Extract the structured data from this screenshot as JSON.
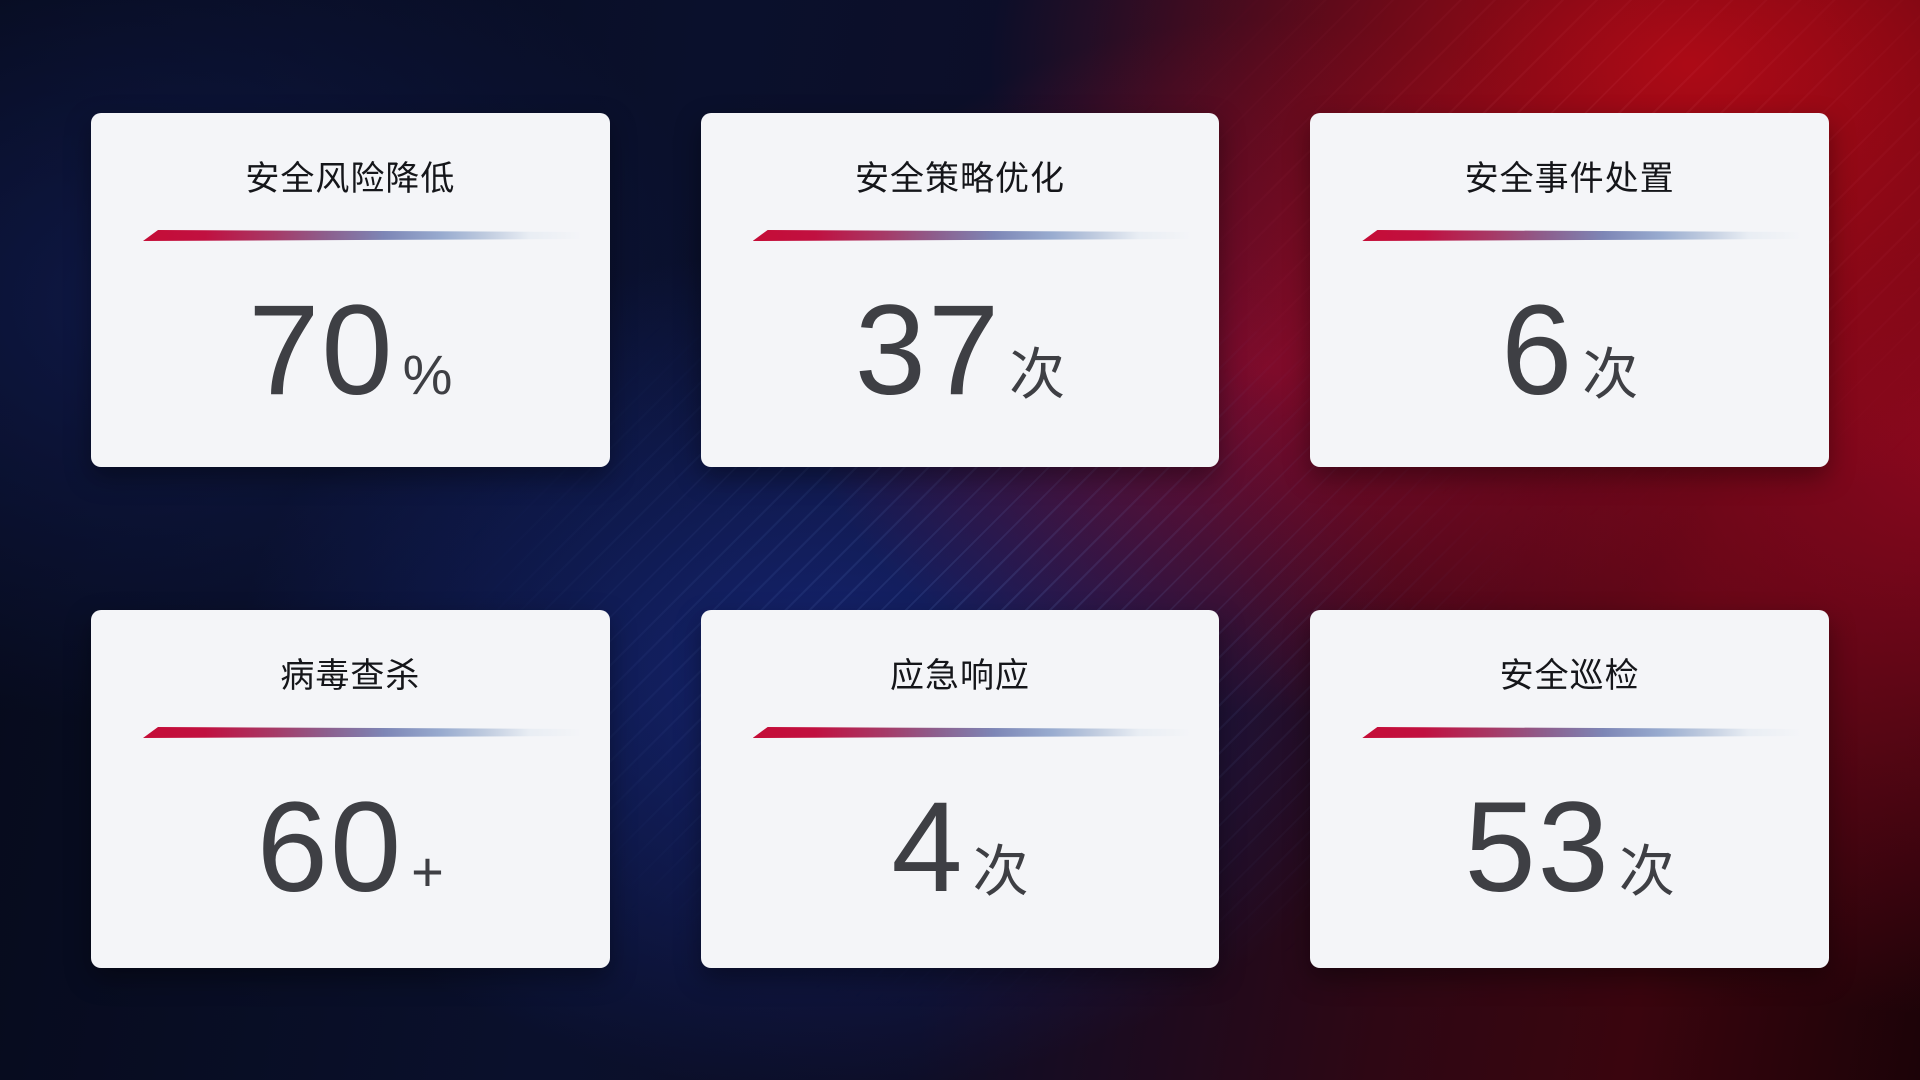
{
  "cards": [
    {
      "title": "安全风险降低",
      "value": "70",
      "unit": "%"
    },
    {
      "title": "安全策略优化",
      "value": "37",
      "unit": "次"
    },
    {
      "title": "安全事件处置",
      "value": "6",
      "unit": "次"
    },
    {
      "title": "病毒查杀",
      "value": "60",
      "unit": "+"
    },
    {
      "title": "应急响应",
      "value": "4",
      "unit": "次"
    },
    {
      "title": "安全巡检",
      "value": "53",
      "unit": "次"
    }
  ],
  "colors": {
    "card-bg": "#f4f5f8",
    "title-color": "#15161a",
    "number-color": "#3e3f44",
    "divider-start": "#c50d37",
    "divider-mid": "#7d86b6"
  }
}
